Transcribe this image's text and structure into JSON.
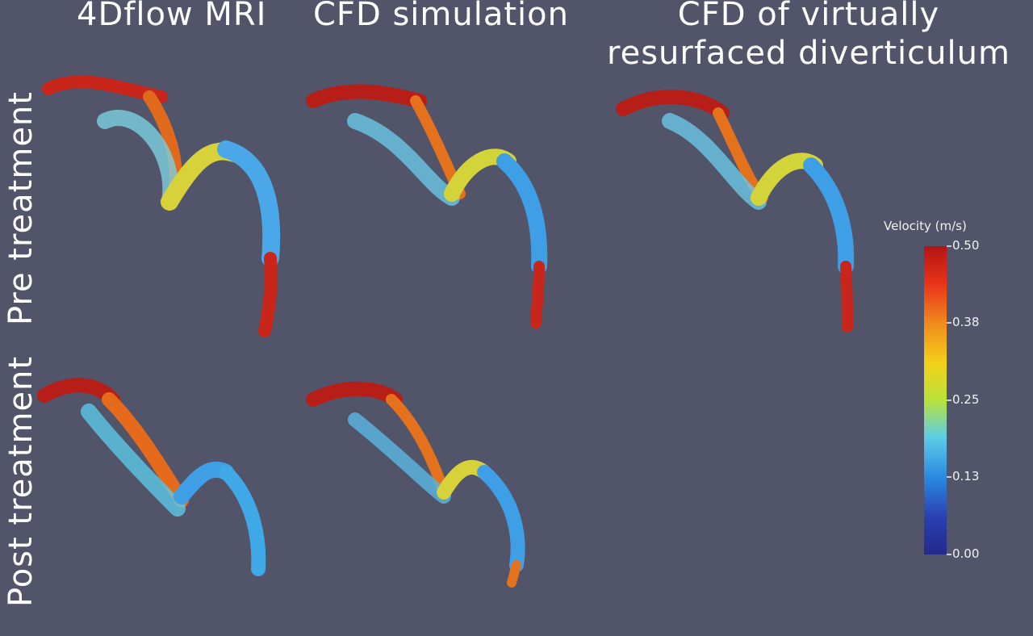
{
  "columns": [
    "4Dflow MRI",
    "CFD simulation",
    "CFD of virtually resurfaced diverticulum"
  ],
  "column3_lines": [
    "CFD of virtually",
    "resurfaced diverticulum"
  ],
  "rows": [
    "Pre treatment",
    "Post treatment"
  ],
  "colorbar": {
    "title": "Velocity (m/s)",
    "ticks": [
      "0.50",
      "0.38",
      "0.25",
      "0.13",
      "0.00"
    ],
    "colors": [
      "#b41414",
      "#e8321a",
      "#f08a1c",
      "#f2d21a",
      "#b8e23a",
      "#5ccde6",
      "#2a8ae0",
      "#2b3fb0",
      "#232a8a"
    ]
  }
}
